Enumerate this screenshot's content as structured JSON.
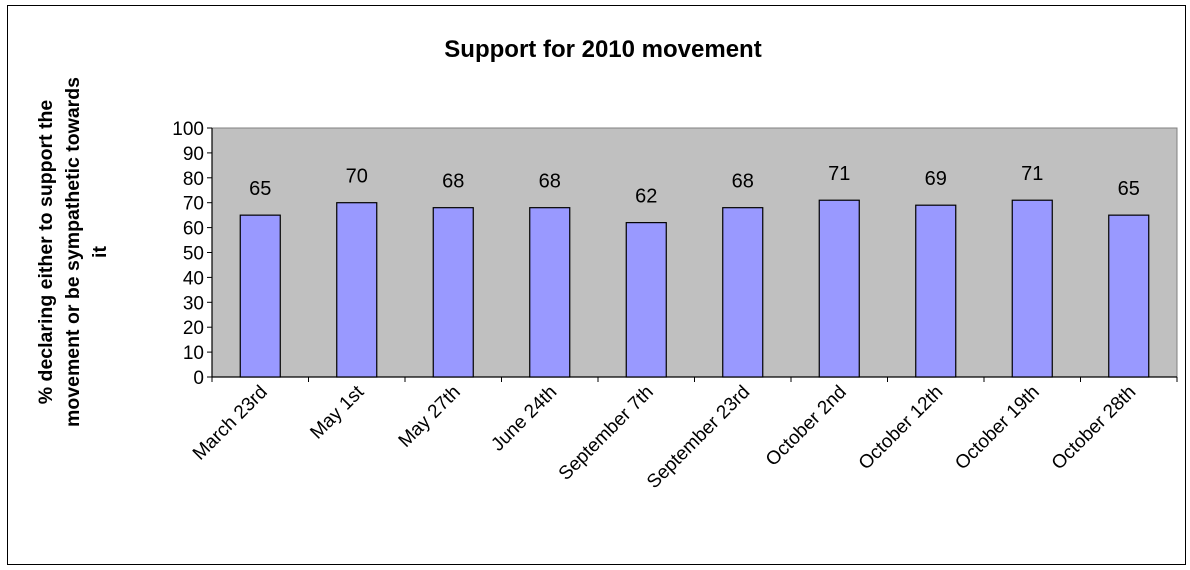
{
  "chart_data": {
    "type": "bar",
    "title": "Support for 2010 movement",
    "xlabel": "",
    "ylabel_lines": [
      "% declaring either to support the",
      "movement or be sympathetic towards",
      "it"
    ],
    "categories": [
      "March 23rd",
      "May 1st",
      "May 27th",
      "June 24th",
      "September 7th",
      "September 23rd",
      "October 2nd",
      "October 12th",
      "October 19th",
      "October 28th"
    ],
    "values": [
      65,
      70,
      68,
      68,
      62,
      68,
      71,
      69,
      71,
      65
    ],
    "data_labels": [
      "65",
      "70",
      "68",
      "68",
      "62",
      "68",
      "71",
      "69",
      "71",
      "65"
    ],
    "ylim": [
      0,
      100
    ],
    "yticks": [
      "0",
      "10",
      "20",
      "30",
      "40",
      "50",
      "60",
      "70",
      "80",
      "90",
      "100"
    ],
    "grid": false,
    "legend": "none",
    "colors": {
      "plot_background": "#c0c0c0",
      "bar_fill": "#9999ff",
      "bar_stroke": "#000000"
    }
  }
}
